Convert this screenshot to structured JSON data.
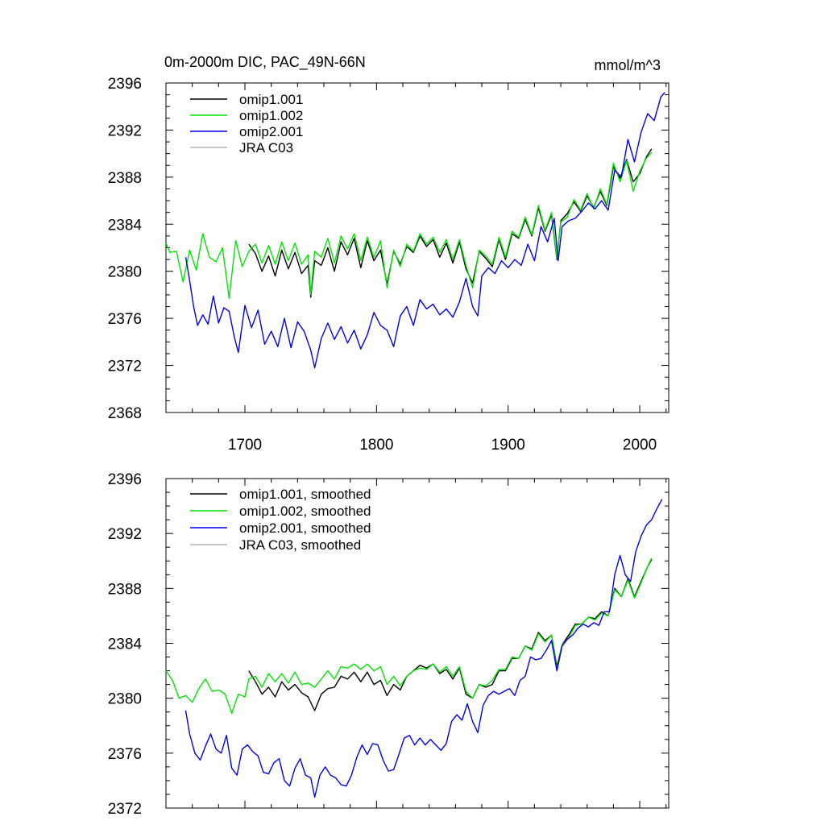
{
  "chart_data": [
    {
      "type": "line",
      "title": "0m-2000m DIC, PAC_49N-66N",
      "units": "mmol/m^3",
      "xlim": [
        1640,
        2022
      ],
      "ylim": [
        2368,
        2396
      ],
      "yticks": [
        2368,
        2372,
        2376,
        2380,
        2384,
        2388,
        2392,
        2396
      ],
      "xticks": [
        1700,
        1800,
        1900,
        2000
      ],
      "x_tick_labels_shown": true,
      "legend_position": "top-left",
      "series": [
        {
          "name": "omip1.001",
          "color": "#000000",
          "x": [
            1703,
            1708,
            1713,
            1718,
            1723,
            1728,
            1733,
            1738,
            1743,
            1748,
            1750,
            1753,
            1758,
            1763,
            1768,
            1773,
            1778,
            1783,
            1788,
            1793,
            1798,
            1803,
            1808,
            1813,
            1818,
            1823,
            1828,
            1833,
            1838,
            1843,
            1848,
            1853,
            1858,
            1863,
            1868,
            1873,
            1878,
            1883,
            1888,
            1893,
            1898,
            1903,
            1908,
            1913,
            1918,
            1923,
            1928,
            1933,
            1937,
            1940,
            1945,
            1950,
            1955,
            1960,
            1965,
            1970,
            1975,
            1980,
            1985,
            1990,
            1995,
            2000,
            2005,
            2009
          ],
          "y": [
            2382.3,
            2381.5,
            2380.0,
            2381.3,
            2379.6,
            2381.8,
            2380.2,
            2381.6,
            2379.8,
            2380.5,
            2377.8,
            2380.9,
            2380.5,
            2382.0,
            2380.0,
            2382.5,
            2381.4,
            2382.8,
            2380.3,
            2382.6,
            2380.9,
            2381.8,
            2378.9,
            2381.7,
            2380.6,
            2382.1,
            2381.6,
            2383.0,
            2382.1,
            2382.7,
            2381.2,
            2382.4,
            2380.7,
            2382.5,
            2380.2,
            2379.0,
            2381.7,
            2381.1,
            2380.4,
            2382.7,
            2381.0,
            2383.2,
            2382.8,
            2384.4,
            2383.0,
            2385.4,
            2383.4,
            2384.8,
            2381.0,
            2384.3,
            2384.9,
            2385.9,
            2385.1,
            2386.4,
            2385.4,
            2386.8,
            2385.6,
            2388.9,
            2387.9,
            2389.5,
            2387.6,
            2388.3,
            2389.7,
            2390.4
          ]
        },
        {
          "name": "omip1.002",
          "color": "#00e600",
          "x": [
            1640,
            1643,
            1648,
            1653,
            1658,
            1663,
            1668,
            1673,
            1678,
            1683,
            1688,
            1693,
            1698,
            1703,
            1708,
            1713,
            1718,
            1723,
            1728,
            1733,
            1738,
            1743,
            1748,
            1750,
            1753,
            1758,
            1763,
            1768,
            1773,
            1778,
            1783,
            1788,
            1793,
            1798,
            1803,
            1808,
            1813,
            1818,
            1823,
            1828,
            1833,
            1838,
            1843,
            1848,
            1853,
            1858,
            1863,
            1868,
            1873,
            1878,
            1883,
            1888,
            1893,
            1898,
            1903,
            1908,
            1913,
            1918,
            1923,
            1928,
            1933,
            1937,
            1940,
            1945,
            1950,
            1955,
            1960,
            1965,
            1970,
            1975,
            1980,
            1985,
            1990,
            1995,
            2000,
            2005,
            2009
          ],
          "y": [
            2382.4,
            2381.6,
            2381.7,
            2379.1,
            2381.8,
            2380.1,
            2383.2,
            2381.2,
            2380.8,
            2382.0,
            2377.7,
            2382.6,
            2380.4,
            2381.7,
            2382.3,
            2380.7,
            2382.2,
            2380.6,
            2382.5,
            2380.9,
            2382.4,
            2380.6,
            2381.4,
            2378.0,
            2381.7,
            2381.2,
            2382.8,
            2380.7,
            2383.0,
            2381.9,
            2383.2,
            2380.9,
            2382.9,
            2381.2,
            2382.6,
            2378.6,
            2381.8,
            2380.4,
            2382.3,
            2381.7,
            2383.2,
            2382.3,
            2382.9,
            2381.6,
            2382.7,
            2381.0,
            2382.7,
            2380.5,
            2378.6,
            2381.8,
            2381.3,
            2380.6,
            2382.9,
            2381.2,
            2383.4,
            2382.9,
            2384.6,
            2383.1,
            2385.6,
            2383.5,
            2385.0,
            2381.1,
            2384.2,
            2384.6,
            2386.1,
            2385.2,
            2386.6,
            2385.3,
            2387.0,
            2385.7,
            2389.2,
            2387.6,
            2389.4,
            2386.8,
            2388.5,
            2389.6,
            2390.1
          ]
        },
        {
          "name": "omip2.001",
          "color": "#0000ee",
          "x": [
            1655,
            1658,
            1661,
            1664,
            1668,
            1672,
            1676,
            1680,
            1684,
            1688,
            1692,
            1695,
            1700,
            1705,
            1710,
            1715,
            1720,
            1725,
            1730,
            1735,
            1740,
            1745,
            1750,
            1753,
            1758,
            1763,
            1768,
            1773,
            1778,
            1783,
            1788,
            1793,
            1798,
            1803,
            1808,
            1813,
            1818,
            1823,
            1828,
            1833,
            1838,
            1843,
            1848,
            1853,
            1858,
            1863,
            1868,
            1873,
            1877,
            1880,
            1885,
            1890,
            1895,
            1900,
            1905,
            1910,
            1915,
            1920,
            1925,
            1930,
            1935,
            1938,
            1941,
            1946,
            1951,
            1956,
            1961,
            1966,
            1971,
            1976,
            1981,
            1986,
            1991,
            1996,
            2001,
            2006,
            2011,
            2016,
            2019
          ],
          "y": [
            2381.2,
            2379.2,
            2377.0,
            2375.4,
            2376.3,
            2375.5,
            2377.9,
            2375.6,
            2376.9,
            2376.6,
            2374.4,
            2373.1,
            2377.1,
            2375.2,
            2376.7,
            2373.8,
            2374.9,
            2373.6,
            2376.0,
            2373.5,
            2375.7,
            2374.9,
            2373.3,
            2371.8,
            2374.3,
            2375.6,
            2374.2,
            2375.3,
            2373.9,
            2375.0,
            2373.4,
            2374.6,
            2376.5,
            2375.4,
            2375.0,
            2373.6,
            2376.2,
            2377.0,
            2375.4,
            2377.6,
            2376.8,
            2377.2,
            2376.3,
            2376.8,
            2376.1,
            2377.4,
            2379.4,
            2377.0,
            2376.2,
            2379.6,
            2380.3,
            2379.8,
            2380.9,
            2380.3,
            2381.0,
            2380.5,
            2382.3,
            2380.9,
            2383.8,
            2382.5,
            2384.5,
            2380.9,
            2383.8,
            2384.3,
            2384.5,
            2385.1,
            2385.8,
            2385.3,
            2386.0,
            2385.2,
            2388.6,
            2388.0,
            2391.2,
            2389.3,
            2391.8,
            2393.4,
            2392.8,
            2394.8,
            2395.2
          ]
        },
        {
          "name": "JRA C03",
          "color": "#b4b4b4",
          "x": [],
          "y": []
        }
      ]
    },
    {
      "type": "line",
      "title": "",
      "units": "",
      "xlim": [
        1640,
        2022
      ],
      "ylim": [
        2372,
        2396
      ],
      "yticks": [
        2372,
        2376,
        2380,
        2384,
        2388,
        2392,
        2396
      ],
      "xticks": [
        1700,
        1800,
        1900,
        2000
      ],
      "x_tick_labels_shown": false,
      "legend_position": "top-left",
      "series": [
        {
          "name": "omip1.001, smoothed",
          "color": "#000000",
          "x": [
            1703,
            1708,
            1713,
            1718,
            1723,
            1728,
            1733,
            1738,
            1743,
            1748,
            1753,
            1758,
            1763,
            1768,
            1773,
            1778,
            1783,
            1788,
            1793,
            1798,
            1803,
            1808,
            1813,
            1818,
            1823,
            1828,
            1833,
            1838,
            1843,
            1848,
            1853,
            1858,
            1863,
            1868,
            1873,
            1878,
            1883,
            1888,
            1893,
            1898,
            1903,
            1908,
            1913,
            1918,
            1923,
            1928,
            1933,
            1937,
            1941,
            1946,
            1951,
            1956,
            1961,
            1966,
            1971,
            1976,
            1981,
            1986,
            1991,
            1996,
            2001,
            2006,
            2009
          ],
          "y": [
            2382.0,
            2381.2,
            2380.3,
            2380.8,
            2380.1,
            2381.2,
            2380.6,
            2381.0,
            2380.4,
            2380.1,
            2379.1,
            2380.3,
            2380.7,
            2380.8,
            2381.6,
            2381.4,
            2381.9,
            2381.2,
            2381.9,
            2381.0,
            2381.3,
            2380.2,
            2381.0,
            2380.6,
            2381.6,
            2382.0,
            2382.4,
            2382.2,
            2382.5,
            2381.8,
            2382.1,
            2381.4,
            2382.2,
            2380.3,
            2380.0,
            2381.0,
            2380.8,
            2381.0,
            2382.0,
            2382.0,
            2382.9,
            2382.9,
            2383.8,
            2383.6,
            2384.8,
            2384.2,
            2384.6,
            2382.3,
            2383.9,
            2384.6,
            2385.4,
            2385.4,
            2385.9,
            2385.8,
            2386.3,
            2386.0,
            2388.0,
            2387.4,
            2388.7,
            2387.4,
            2388.5,
            2389.6,
            2390.1
          ]
        },
        {
          "name": "omip1.002, smoothed",
          "color": "#00e600",
          "x": [
            1640,
            1645,
            1650,
            1655,
            1660,
            1665,
            1670,
            1675,
            1680,
            1685,
            1690,
            1695,
            1700,
            1703,
            1708,
            1713,
            1718,
            1723,
            1728,
            1733,
            1738,
            1743,
            1748,
            1753,
            1758,
            1763,
            1768,
            1773,
            1778,
            1783,
            1788,
            1793,
            1798,
            1803,
            1808,
            1813,
            1818,
            1823,
            1828,
            1833,
            1838,
            1843,
            1848,
            1853,
            1858,
            1863,
            1868,
            1873,
            1878,
            1883,
            1888,
            1893,
            1898,
            1903,
            1908,
            1913,
            1918,
            1923,
            1928,
            1933,
            1937,
            1941,
            1946,
            1951,
            1956,
            1961,
            1966,
            1971,
            1976,
            1981,
            1986,
            1991,
            1996,
            2001,
            2006,
            2009
          ],
          "y": [
            2382.0,
            2381.3,
            2380.0,
            2380.2,
            2379.7,
            2380.7,
            2381.4,
            2380.5,
            2380.6,
            2380.3,
            2378.9,
            2380.3,
            2380.1,
            2381.4,
            2381.6,
            2380.8,
            2381.8,
            2381.2,
            2381.8,
            2381.1,
            2381.9,
            2381.0,
            2381.1,
            2380.8,
            2381.4,
            2382.0,
            2381.4,
            2382.3,
            2382.2,
            2382.5,
            2382.1,
            2382.5,
            2382.0,
            2382.3,
            2381.0,
            2381.6,
            2380.9,
            2381.6,
            2382.0,
            2382.2,
            2382.1,
            2382.5,
            2381.9,
            2382.3,
            2381.6,
            2382.3,
            2380.5,
            2380.0,
            2381.0,
            2380.9,
            2381.3,
            2382.1,
            2382.1,
            2383.0,
            2382.9,
            2383.8,
            2383.5,
            2384.7,
            2384.1,
            2384.6,
            2382.1,
            2383.9,
            2384.4,
            2385.3,
            2385.4,
            2385.9,
            2385.7,
            2386.2,
            2386.0,
            2387.9,
            2387.4,
            2388.6,
            2387.3,
            2388.4,
            2389.6,
            2390.2
          ]
        },
        {
          "name": "omip2.001, smoothed",
          "color": "#0000ee",
          "x": [
            1655,
            1658,
            1662,
            1666,
            1670,
            1674,
            1678,
            1682,
            1686,
            1690,
            1694,
            1698,
            1702,
            1706,
            1710,
            1714,
            1718,
            1722,
            1726,
            1730,
            1734,
            1738,
            1742,
            1746,
            1750,
            1753,
            1757,
            1761,
            1765,
            1769,
            1773,
            1777,
            1781,
            1785,
            1789,
            1793,
            1797,
            1801,
            1805,
            1809,
            1813,
            1817,
            1821,
            1825,
            1829,
            1833,
            1837,
            1841,
            1845,
            1849,
            1853,
            1857,
            1861,
            1865,
            1869,
            1873,
            1877,
            1881,
            1885,
            1889,
            1893,
            1897,
            1901,
            1905,
            1909,
            1913,
            1917,
            1921,
            1925,
            1929,
            1933,
            1937,
            1941,
            1945,
            1949,
            1953,
            1957,
            1961,
            1965,
            1969,
            1973,
            1977,
            1981,
            1985,
            1989,
            1993,
            1997,
            2001,
            2005,
            2009,
            2013,
            2017
          ],
          "y": [
            2379.1,
            2377.4,
            2376.0,
            2375.5,
            2376.5,
            2377.4,
            2376.3,
            2376.0,
            2377.3,
            2374.9,
            2374.4,
            2376.3,
            2376.6,
            2376.1,
            2375.8,
            2374.6,
            2374.5,
            2375.3,
            2375.6,
            2374.0,
            2373.6,
            2374.9,
            2375.6,
            2374.4,
            2374.2,
            2372.8,
            2374.4,
            2375.0,
            2374.4,
            2374.2,
            2373.7,
            2373.6,
            2374.4,
            2375.7,
            2376.6,
            2375.9,
            2376.7,
            2376.6,
            2375.5,
            2374.7,
            2374.8,
            2375.9,
            2377.1,
            2377.3,
            2376.6,
            2377.1,
            2376.6,
            2377.0,
            2376.6,
            2376.2,
            2376.7,
            2378.3,
            2378.8,
            2378.4,
            2379.6,
            2378.3,
            2377.5,
            2379.5,
            2380.2,
            2380.5,
            2380.3,
            2380.5,
            2380.7,
            2380.2,
            2381.3,
            2381.6,
            2383.0,
            2382.8,
            2382.9,
            2383.5,
            2384.2,
            2382.0,
            2383.8,
            2384.3,
            2384.6,
            2385.1,
            2385.4,
            2385.2,
            2385.5,
            2385.3,
            2386.3,
            2386.3,
            2389.0,
            2390.4,
            2389.0,
            2388.5,
            2390.7,
            2391.8,
            2392.6,
            2393.0,
            2393.8,
            2394.5
          ]
        },
        {
          "name": "JRA C03, smoothed",
          "color": "#b4b4b4",
          "x": [],
          "y": []
        }
      ]
    }
  ]
}
